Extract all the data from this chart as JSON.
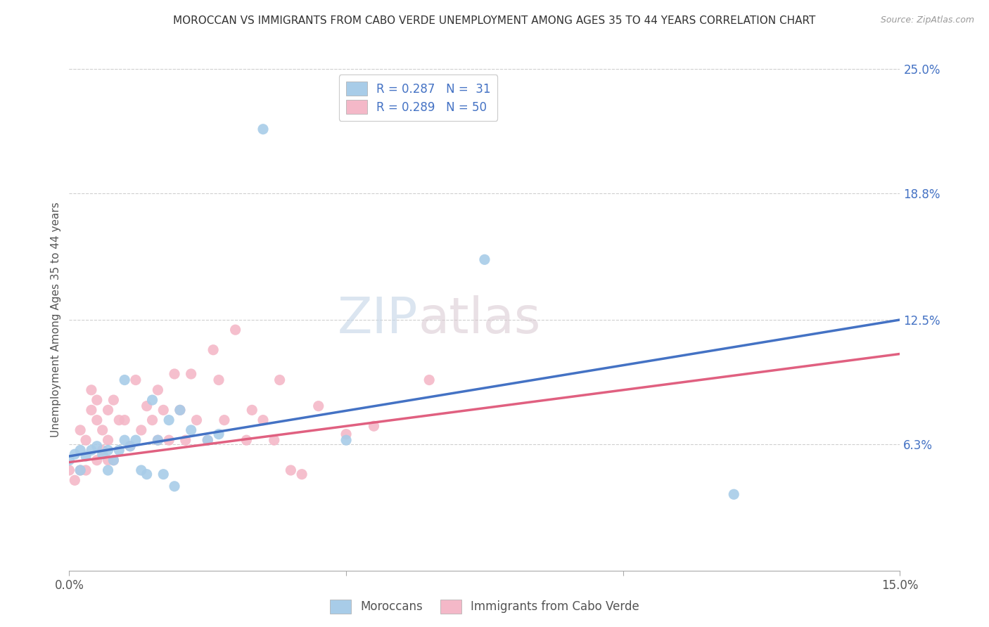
{
  "title": "MOROCCAN VS IMMIGRANTS FROM CABO VERDE UNEMPLOYMENT AMONG AGES 35 TO 44 YEARS CORRELATION CHART",
  "source": "Source: ZipAtlas.com",
  "ylabel": "Unemployment Among Ages 35 to 44 years",
  "x_min": 0.0,
  "x_max": 0.15,
  "y_min": 0.0,
  "y_max": 0.25,
  "y_tick_labels_right": [
    "6.3%",
    "12.5%",
    "18.8%",
    "25.0%"
  ],
  "y_tick_positions_right": [
    0.063,
    0.125,
    0.188,
    0.25
  ],
  "legend_label_blue": "R = 0.287   N =  31",
  "legend_label_pink": "R = 0.289   N = 50",
  "legend_bottom_blue": "Moroccans",
  "legend_bottom_pink": "Immigrants from Cabo Verde",
  "blue_color": "#a8cce8",
  "pink_color": "#f4b8c8",
  "line_blue_color": "#4472c4",
  "line_pink_color": "#e06080",
  "blue_line_x": [
    0.0,
    0.15
  ],
  "blue_line_y": [
    0.057,
    0.125
  ],
  "pink_line_x": [
    0.0,
    0.15
  ],
  "pink_line_y": [
    0.054,
    0.108
  ],
  "blue_points_x": [
    0.0,
    0.001,
    0.002,
    0.002,
    0.003,
    0.004,
    0.005,
    0.006,
    0.007,
    0.007,
    0.008,
    0.009,
    0.01,
    0.01,
    0.011,
    0.012,
    0.013,
    0.014,
    0.015,
    0.016,
    0.017,
    0.018,
    0.019,
    0.02,
    0.022,
    0.025,
    0.027,
    0.035,
    0.05,
    0.075,
    0.12
  ],
  "blue_points_y": [
    0.055,
    0.058,
    0.06,
    0.05,
    0.057,
    0.06,
    0.062,
    0.058,
    0.06,
    0.05,
    0.055,
    0.06,
    0.065,
    0.095,
    0.062,
    0.065,
    0.05,
    0.048,
    0.085,
    0.065,
    0.048,
    0.075,
    0.042,
    0.08,
    0.07,
    0.065,
    0.068,
    0.22,
    0.065,
    0.155,
    0.038
  ],
  "pink_points_x": [
    0.0,
    0.001,
    0.002,
    0.002,
    0.003,
    0.003,
    0.004,
    0.004,
    0.005,
    0.005,
    0.005,
    0.006,
    0.006,
    0.007,
    0.007,
    0.007,
    0.008,
    0.008,
    0.009,
    0.01,
    0.011,
    0.012,
    0.013,
    0.014,
    0.015,
    0.016,
    0.016,
    0.017,
    0.018,
    0.019,
    0.02,
    0.021,
    0.022,
    0.023,
    0.025,
    0.026,
    0.027,
    0.028,
    0.03,
    0.032,
    0.033,
    0.035,
    0.037,
    0.038,
    0.04,
    0.042,
    0.045,
    0.05,
    0.055,
    0.065
  ],
  "pink_points_y": [
    0.05,
    0.045,
    0.07,
    0.05,
    0.065,
    0.05,
    0.08,
    0.09,
    0.075,
    0.085,
    0.055,
    0.06,
    0.07,
    0.08,
    0.055,
    0.065,
    0.085,
    0.055,
    0.075,
    0.075,
    0.062,
    0.095,
    0.07,
    0.082,
    0.075,
    0.09,
    0.065,
    0.08,
    0.065,
    0.098,
    0.08,
    0.065,
    0.098,
    0.075,
    0.065,
    0.11,
    0.095,
    0.075,
    0.12,
    0.065,
    0.08,
    0.075,
    0.065,
    0.095,
    0.05,
    0.048,
    0.082,
    0.068,
    0.072,
    0.095
  ],
  "watermark_zip": "ZIP",
  "watermark_atlas": "atlas",
  "background_color": "#ffffff",
  "grid_color": "#d0d0d0"
}
